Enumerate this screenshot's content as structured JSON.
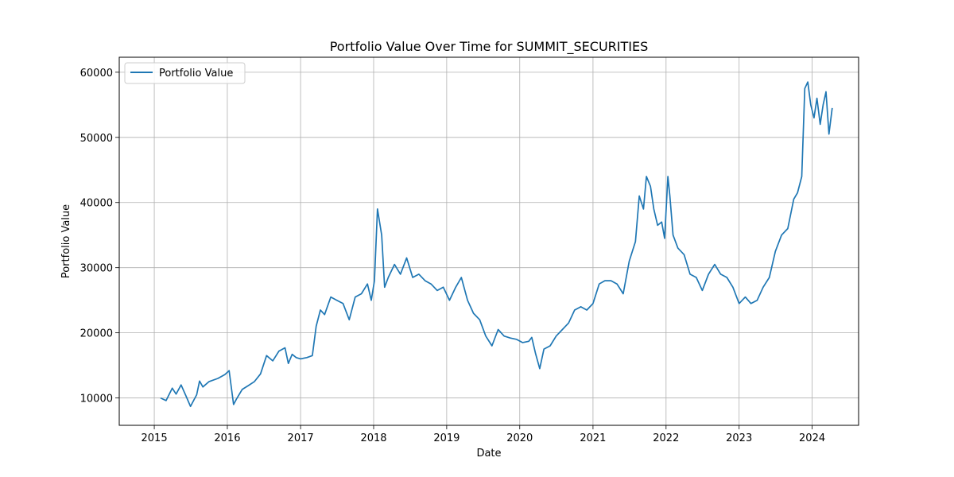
{
  "chart_data": {
    "type": "line",
    "title": "Portfolio Value Over Time for SUMMIT_SECURITIES",
    "xlabel": "Date",
    "ylabel": "Portfolio Value",
    "xlim": [
      "2014-07-10",
      "2024-08-20"
    ],
    "ylim": [
      5800,
      62300
    ],
    "x_ticks": [
      "2015",
      "2016",
      "2017",
      "2018",
      "2019",
      "2020",
      "2021",
      "2022",
      "2023",
      "2024"
    ],
    "y_ticks": [
      10000,
      20000,
      30000,
      40000,
      50000,
      60000
    ],
    "grid": true,
    "legend_position": "top-left",
    "series": [
      {
        "name": "Portfolio Value",
        "color": "#1f77b4",
        "x": [
          "2015-02-01",
          "2015-03-01",
          "2015-04-01",
          "2015-04-20",
          "2015-05-15",
          "2015-06-10",
          "2015-07-01",
          "2015-08-01",
          "2015-08-15",
          "2015-09-01",
          "2015-10-01",
          "2015-11-15",
          "2015-12-20",
          "2016-01-10",
          "2016-02-01",
          "2016-02-15",
          "2016-03-15",
          "2016-04-15",
          "2016-05-15",
          "2016-06-15",
          "2016-07-15",
          "2016-08-15",
          "2016-09-15",
          "2016-10-15",
          "2016-11-01",
          "2016-11-20",
          "2016-12-10",
          "2017-01-01",
          "2017-02-01",
          "2017-03-01",
          "2017-03-20",
          "2017-04-10",
          "2017-05-01",
          "2017-06-01",
          "2017-07-01",
          "2017-08-01",
          "2017-09-01",
          "2017-10-01",
          "2017-11-01",
          "2017-12-01",
          "2017-12-20",
          "2018-01-05",
          "2018-01-20",
          "2018-02-10",
          "2018-02-25",
          "2018-03-15",
          "2018-04-15",
          "2018-05-15",
          "2018-06-15",
          "2018-07-15",
          "2018-08-15",
          "2018-09-15",
          "2018-10-15",
          "2018-11-15",
          "2018-12-15",
          "2019-01-15",
          "2019-02-15",
          "2019-03-15",
          "2019-04-15",
          "2019-05-15",
          "2019-06-15",
          "2019-07-15",
          "2019-08-15",
          "2019-09-15",
          "2019-10-15",
          "2019-11-15",
          "2019-12-15",
          "2020-01-15",
          "2020-02-15",
          "2020-03-01",
          "2020-03-20",
          "2020-04-10",
          "2020-05-01",
          "2020-06-01",
          "2020-07-01",
          "2020-08-01",
          "2020-09-01",
          "2020-10-01",
          "2020-11-01",
          "2020-12-01",
          "2021-01-01",
          "2021-02-01",
          "2021-03-01",
          "2021-04-01",
          "2021-05-01",
          "2021-06-01",
          "2021-07-01",
          "2021-08-01",
          "2021-08-20",
          "2021-09-10",
          "2021-09-25",
          "2021-10-15",
          "2021-11-01",
          "2021-11-20",
          "2021-12-10",
          "2021-12-25",
          "2022-01-10",
          "2022-01-20",
          "2022-02-05",
          "2022-03-01",
          "2022-04-01",
          "2022-05-01",
          "2022-06-01",
          "2022-07-01",
          "2022-08-01",
          "2022-09-01",
          "2022-10-01",
          "2022-11-01",
          "2022-12-01",
          "2023-01-01",
          "2023-02-01",
          "2023-03-01",
          "2023-04-01",
          "2023-05-01",
          "2023-06-01",
          "2023-07-01",
          "2023-08-01",
          "2023-09-01",
          "2023-10-01",
          "2023-10-20",
          "2023-11-10",
          "2023-11-25",
          "2023-12-10",
          "2023-12-25",
          "2024-01-10",
          "2024-01-25",
          "2024-02-10",
          "2024-02-25",
          "2024-03-10",
          "2024-03-25",
          "2024-04-10"
        ],
        "y": [
          10000,
          9600,
          11500,
          10600,
          12000,
          10200,
          8700,
          10500,
          12600,
          11700,
          12500,
          13000,
          13600,
          14200,
          9000,
          9800,
          11300,
          11900,
          12500,
          13700,
          16500,
          15700,
          17200,
          17700,
          15300,
          16700,
          16200,
          16000,
          16200,
          16500,
          21000,
          23500,
          22800,
          25500,
          25000,
          24500,
          22000,
          25500,
          26000,
          27500,
          25000,
          28000,
          39000,
          35000,
          27000,
          28500,
          30500,
          29000,
          31500,
          28500,
          29000,
          28000,
          27500,
          26500,
          27000,
          25000,
          27000,
          28500,
          25000,
          23000,
          22000,
          19500,
          18000,
          20500,
          19500,
          19200,
          19000,
          18500,
          18700,
          19300,
          16800,
          14500,
          17500,
          18000,
          19500,
          20500,
          21500,
          23500,
          24000,
          23500,
          24500,
          27500,
          28000,
          28000,
          27500,
          26000,
          31000,
          34000,
          41000,
          39000,
          44000,
          42500,
          39000,
          36500,
          37000,
          34500,
          44000,
          41000,
          35000,
          33000,
          32000,
          29000,
          28500,
          26500,
          29000,
          30500,
          29000,
          28500,
          27000,
          24500,
          25500,
          24500,
          25000,
          27000,
          28500,
          32500,
          35000,
          36000,
          40500,
          41500,
          44000,
          57500,
          58500,
          55000,
          53000,
          56000,
          52000,
          55000,
          57000,
          50500,
          54500
        ]
      }
    ]
  }
}
